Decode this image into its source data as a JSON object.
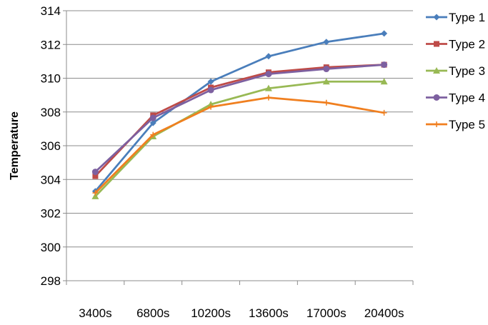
{
  "chart_data": {
    "type": "line",
    "categories": [
      "3400s",
      "6800s",
      "10200s",
      "13600s",
      "17000s",
      "20400s"
    ],
    "ylabel": "Temperature",
    "ylim": [
      298,
      314
    ],
    "yticks": [
      298,
      300,
      302,
      304,
      306,
      308,
      310,
      312,
      314
    ],
    "grid": true,
    "legend_position": "right",
    "series": [
      {
        "name": "Type 1",
        "color": "#4a7ebb",
        "marker": "diamond",
        "values": [
          303.3,
          307.35,
          309.8,
          311.3,
          312.15,
          312.65
        ]
      },
      {
        "name": "Type 2",
        "color": "#be4b48",
        "marker": "square",
        "values": [
          304.2,
          307.8,
          309.45,
          310.35,
          310.65,
          310.8
        ]
      },
      {
        "name": "Type 3",
        "color": "#98b954",
        "marker": "triangle",
        "values": [
          303.0,
          306.55,
          308.45,
          309.4,
          309.8,
          309.8
        ]
      },
      {
        "name": "Type 4",
        "color": "#7d60a0",
        "marker": "circle",
        "values": [
          304.45,
          307.65,
          309.3,
          310.25,
          310.55,
          310.8
        ]
      },
      {
        "name": "Type 5",
        "color": "#f07f1f",
        "marker": "plus",
        "values": [
          303.2,
          306.65,
          308.3,
          308.85,
          308.55,
          307.95
        ]
      }
    ]
  }
}
